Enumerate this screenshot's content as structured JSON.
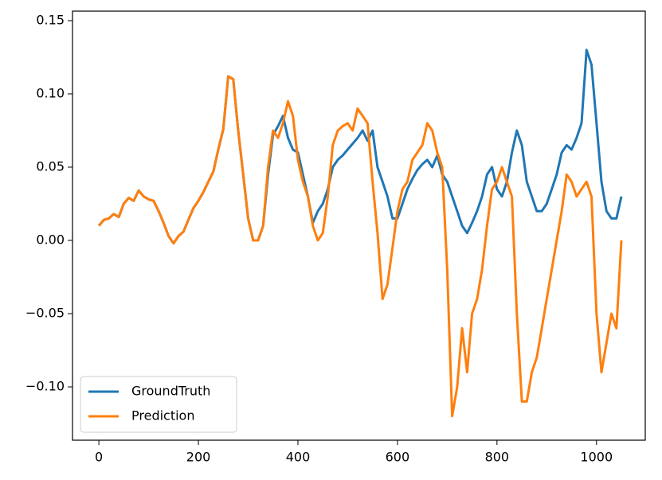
{
  "chart_data": {
    "type": "line",
    "x": [
      0,
      10,
      20,
      30,
      40,
      50,
      60,
      70,
      80,
      90,
      100,
      110,
      120,
      130,
      140,
      150,
      160,
      170,
      180,
      190,
      200,
      210,
      220,
      230,
      240,
      250,
      260,
      270,
      280,
      290,
      300,
      310,
      320,
      330,
      340,
      350,
      360,
      370,
      380,
      390,
      400,
      410,
      420,
      430,
      440,
      450,
      460,
      470,
      480,
      490,
      500,
      510,
      520,
      530,
      540,
      550,
      560,
      570,
      580,
      590,
      600,
      610,
      620,
      630,
      640,
      650,
      660,
      670,
      680,
      690,
      700,
      710,
      720,
      730,
      740,
      750,
      760,
      770,
      780,
      790,
      800,
      810,
      820,
      830,
      840,
      850,
      860,
      870,
      880,
      890,
      900,
      910,
      920,
      930,
      940,
      950,
      960,
      970,
      980,
      990,
      1000,
      1010,
      1020,
      1030,
      1040,
      1050
    ],
    "series": [
      {
        "name": "GroundTruth",
        "color": "#1f77b4",
        "values": [
          0.01,
          0.014,
          0.015,
          0.018,
          0.016,
          0.025,
          0.029,
          0.027,
          0.034,
          0.03,
          0.028,
          0.027,
          0.02,
          0.012,
          0.003,
          -0.002,
          0.003,
          0.006,
          0.014,
          0.022,
          0.027,
          0.033,
          0.04,
          0.047,
          0.062,
          0.076,
          0.112,
          0.11,
          0.075,
          0.045,
          0.015,
          0.0,
          0.0,
          0.01,
          0.045,
          0.072,
          0.078,
          0.085,
          0.07,
          0.062,
          0.06,
          0.045,
          0.03,
          0.012,
          0.02,
          0.025,
          0.035,
          0.05,
          0.055,
          0.058,
          0.062,
          0.066,
          0.07,
          0.075,
          0.068,
          0.075,
          0.05,
          0.04,
          0.03,
          0.015,
          0.015,
          0.025,
          0.035,
          0.042,
          0.048,
          0.052,
          0.055,
          0.05,
          0.058,
          0.045,
          0.04,
          0.03,
          0.02,
          0.01,
          0.005,
          0.012,
          0.02,
          0.03,
          0.045,
          0.05,
          0.035,
          0.03,
          0.04,
          0.06,
          0.075,
          0.065,
          0.04,
          0.03,
          0.02,
          0.02,
          0.025,
          0.035,
          0.045,
          0.06,
          0.065,
          0.062,
          0.07,
          0.08,
          0.13,
          0.12,
          0.08,
          0.04,
          0.02,
          0.015,
          0.015,
          0.03
        ]
      },
      {
        "name": "Prediction",
        "color": "#ff7f0e",
        "values": [
          0.01,
          0.014,
          0.015,
          0.018,
          0.016,
          0.025,
          0.029,
          0.027,
          0.034,
          0.03,
          0.028,
          0.027,
          0.02,
          0.012,
          0.003,
          -0.002,
          0.003,
          0.006,
          0.014,
          0.022,
          0.027,
          0.033,
          0.04,
          0.047,
          0.062,
          0.076,
          0.112,
          0.11,
          0.075,
          0.045,
          0.015,
          0.0,
          0.0,
          0.01,
          0.05,
          0.075,
          0.07,
          0.08,
          0.095,
          0.085,
          0.055,
          0.04,
          0.03,
          0.01,
          0.0,
          0.005,
          0.03,
          0.065,
          0.075,
          0.078,
          0.08,
          0.075,
          0.09,
          0.085,
          0.08,
          0.04,
          0.005,
          -0.04,
          -0.03,
          -0.005,
          0.02,
          0.035,
          0.04,
          0.055,
          0.06,
          0.065,
          0.08,
          0.075,
          0.06,
          0.05,
          -0.02,
          -0.12,
          -0.1,
          -0.06,
          -0.09,
          -0.05,
          -0.04,
          -0.02,
          0.01,
          0.035,
          0.04,
          0.05,
          0.04,
          0.03,
          -0.05,
          -0.11,
          -0.11,
          -0.09,
          -0.08,
          -0.06,
          -0.04,
          -0.02,
          0.0,
          0.02,
          0.045,
          0.04,
          0.03,
          0.035,
          0.04,
          0.03,
          -0.05,
          -0.09,
          -0.07,
          -0.05,
          -0.06,
          0.0
        ]
      }
    ],
    "xlim": [
      -53,
      1098
    ],
    "ylim": [
      -0.1364,
      0.1565
    ],
    "xticks": [
      0,
      200,
      400,
      600,
      800,
      1000
    ],
    "yticks": [
      {
        "value": -0.1,
        "label": "−0.10"
      },
      {
        "value": -0.05,
        "label": "−0.05"
      },
      {
        "value": 0,
        "label": "0.00"
      },
      {
        "value": 0.05,
        "label": "0.05"
      },
      {
        "value": 0.1,
        "label": "0.10"
      },
      {
        "value": 0.15,
        "label": "0.15"
      }
    ],
    "legend": "lower left"
  }
}
